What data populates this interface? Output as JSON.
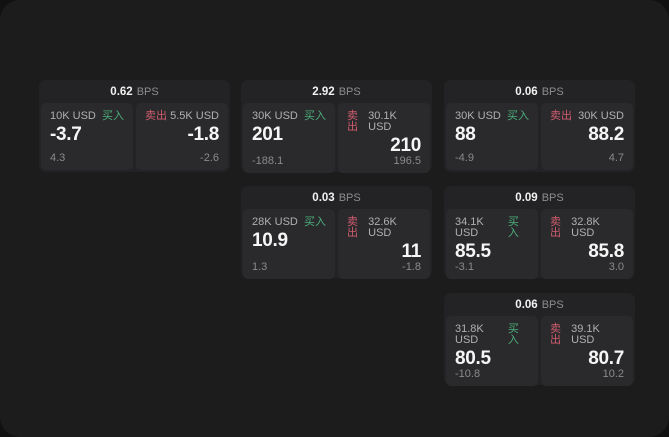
{
  "labels": {
    "bps_unit": "BPS",
    "buy": "买入",
    "sell": "卖出"
  },
  "colors": {
    "buy_green": "#4cae7c",
    "sell_red": "#d05c6e",
    "window_bg": "#1c1c1d",
    "card_bg": "#232325",
    "panel_bg": "#2a2a2c"
  },
  "cards": [
    {
      "bps": "0.62",
      "buy": {
        "amount": "10K USD",
        "price": "-3.7",
        "change": "4.3"
      },
      "sell": {
        "amount": "5.5K USD",
        "price": "-1.8",
        "change": "-2.6"
      }
    },
    {
      "bps": "2.92",
      "buy": {
        "amount": "30K USD",
        "price": "201",
        "change": "-188.1"
      },
      "sell": {
        "amount": "30.1K USD",
        "price": "210",
        "change": "196.5"
      }
    },
    {
      "bps": "0.06",
      "buy": {
        "amount": "30K USD",
        "price": "88",
        "change": "-4.9"
      },
      "sell": {
        "amount": "30K USD",
        "price": "88.2",
        "change": "4.7"
      }
    },
    {
      "bps": "0.03",
      "buy": {
        "amount": "28K USD",
        "price": "10.9",
        "change": "1.3"
      },
      "sell": {
        "amount": "32.6K USD",
        "price": "11",
        "change": "-1.8"
      }
    },
    {
      "bps": "0.09",
      "buy": {
        "amount": "34.1K USD",
        "price": "85.5",
        "change": "-3.1"
      },
      "sell": {
        "amount": "32.8K USD",
        "price": "85.8",
        "change": "3.0"
      }
    },
    {
      "bps": "0.06",
      "buy": {
        "amount": "31.8K USD",
        "price": "80.5",
        "change": "-10.8"
      },
      "sell": {
        "amount": "39.1K USD",
        "price": "80.7",
        "change": "10.2"
      }
    }
  ]
}
